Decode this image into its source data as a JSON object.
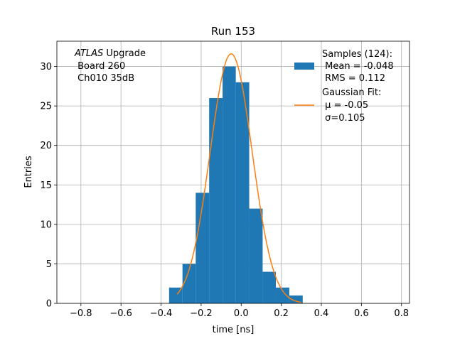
{
  "chart_data": {
    "type": "bar",
    "title": "Run 153",
    "xlabel": "time [ns]",
    "ylabel": "Entries",
    "xlim": [
      -0.92,
      0.84
    ],
    "ylim": [
      0,
      33.2
    ],
    "grid": true,
    "x_ticks": [
      "−0.8",
      "−0.6",
      "−0.4",
      "−0.2",
      "0.0",
      "0.2",
      "0.4",
      "0.6",
      "0.8"
    ],
    "x_tick_values": [
      -0.8,
      -0.6,
      -0.4,
      -0.2,
      0.0,
      0.2,
      0.4,
      0.6,
      0.8
    ],
    "y_ticks": [
      "0",
      "5",
      "10",
      "15",
      "20",
      "25",
      "30"
    ],
    "y_tick_values": [
      0,
      5,
      10,
      15,
      20,
      25,
      30
    ],
    "histogram": {
      "name": "Samples (124):",
      "color": "#1f77b4",
      "bin_edges": [
        -0.36,
        -0.293,
        -0.227,
        -0.16,
        -0.093,
        -0.027,
        0.04,
        0.107,
        0.173,
        0.24,
        0.307
      ],
      "counts": [
        2,
        5,
        14,
        26,
        30,
        28,
        12,
        4,
        2,
        1
      ]
    },
    "fit": {
      "name": "Gaussian Fit:",
      "color": "#ff7f0e",
      "mu": -0.05,
      "sigma": 0.105,
      "amplitude": 31.6,
      "x_range": [
        -0.32,
        0.3
      ]
    },
    "legend": {
      "placement": "top-right",
      "entries": [
        {
          "lines": [
            "Samples (124):",
            " Mean = -0.048",
            " RMS = 0.112"
          ],
          "marker": "patch",
          "color": "#1f77b4"
        },
        {
          "lines": [
            "Gaussian Fit:",
            " μ = -0.05",
            " σ=0.105"
          ],
          "marker": "line",
          "color": "#ff7f0e"
        }
      ]
    },
    "annotation": {
      "italic": "ATLAS",
      "rest": " Upgrade",
      "lines": [
        " Board 260",
        " Ch010 35dB"
      ]
    }
  }
}
